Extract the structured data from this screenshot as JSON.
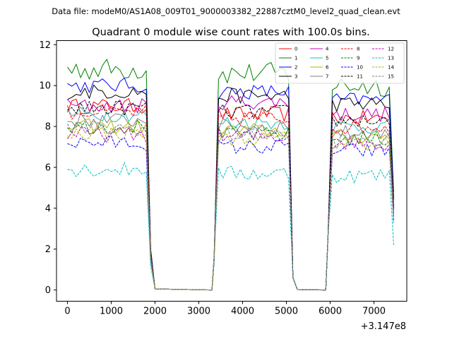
{
  "header": "Data file: modeM0/AS1A08_009T01_9000003382_22887cztM0_level2_quad_clean.evt",
  "chart_data": {
    "type": "line",
    "title": "Quadrant 0 module wise count rates with 100.0s bins.",
    "xlabel": "",
    "ylabel": "",
    "x_offset_label": "+3.147e8",
    "xlim": [
      -250,
      7750
    ],
    "ylim": [
      -0.55,
      12.2
    ],
    "xticks": [
      0,
      1000,
      2000,
      3000,
      4000,
      5000,
      6000,
      7000
    ],
    "yticks": [
      0,
      2,
      4,
      6,
      8,
      10,
      12
    ],
    "legend_position": "top-right",
    "segments": [
      {
        "x_start": 0,
        "x_end": 1800,
        "step": 100
      },
      {
        "x_start": 3450,
        "x_end": 5050,
        "step": 100
      },
      {
        "x_start": 6050,
        "x_end": 7350,
        "step": 100
      }
    ],
    "transitions": {
      "drops": [
        [
          1900,
          1.8
        ],
        [
          2000,
          0.05
        ],
        [
          3300,
          0.0
        ]
      ],
      "rises": [
        [
          3350,
          1.5
        ]
      ],
      "drop2": [
        [
          5150,
          0.6
        ],
        [
          5250,
          0.02
        ],
        [
          5900,
          0.0
        ]
      ],
      "rise2": [
        [
          5950,
          2.6
        ]
      ],
      "end": [
        [
          7450,
          3.5
        ]
      ]
    },
    "series": [
      {
        "name": "0",
        "color": "#ff0000",
        "dash": "solid",
        "level1": 9.0,
        "level2": 8.6,
        "level3": 8.4,
        "end": 4.0
      },
      {
        "name": "1",
        "color": "#008000",
        "dash": "solid",
        "level1": 10.8,
        "level2": 10.6,
        "level3": 10.0,
        "end": 4.8
      },
      {
        "name": "2",
        "color": "#0000ff",
        "dash": "solid",
        "level1": 10.0,
        "level2": 9.7,
        "level3": 9.3,
        "end": 4.5
      },
      {
        "name": "3",
        "color": "#000000",
        "dash": "solid",
        "level1": 9.7,
        "level2": 9.5,
        "level3": 9.1,
        "end": 4.4
      },
      {
        "name": "4",
        "color": "#c000c0",
        "dash": "solid",
        "level1": 9.0,
        "level2": 9.2,
        "level3": 8.6,
        "end": 4.2
      },
      {
        "name": "5",
        "color": "#1fbfbf",
        "dash": "solid",
        "level1": 8.6,
        "level2": 8.2,
        "level3": 8.0,
        "end": 3.9
      },
      {
        "name": "6",
        "color": "#b5b500",
        "dash": "solid",
        "level1": 8.0,
        "level2": 7.8,
        "level3": 7.5,
        "end": 3.7
      },
      {
        "name": "7",
        "color": "#808080",
        "dash": "solid",
        "level1": 8.3,
        "level2": 8.0,
        "level3": 7.7,
        "end": 3.8
      },
      {
        "name": "8",
        "color": "#ff0000",
        "dash": "dashed",
        "level1": 8.7,
        "level2": 8.4,
        "level3": 8.0,
        "end": 3.9
      },
      {
        "name": "9",
        "color": "#008000",
        "dash": "dashed",
        "level1": 8.0,
        "level2": 7.6,
        "level3": 7.4,
        "end": 3.6
      },
      {
        "name": "10",
        "color": "#0000ff",
        "dash": "dashed",
        "level1": 7.2,
        "level2": 7.0,
        "level3": 6.8,
        "end": 3.3
      },
      {
        "name": "11",
        "color": "#000000",
        "dash": "dashed",
        "level1": 8.9,
        "level2": 8.7,
        "level3": 8.3,
        "end": 4.0
      },
      {
        "name": "12",
        "color": "#c000c0",
        "dash": "dashed",
        "level1": 7.6,
        "level2": 7.5,
        "level3": 7.2,
        "end": 3.5
      },
      {
        "name": "13",
        "color": "#00bfbf",
        "dash": "dashed",
        "level1": 5.9,
        "level2": 5.7,
        "level3": 5.6,
        "end": 2.2
      },
      {
        "name": "14",
        "color": "#b5b500",
        "dash": "dashed",
        "level1": 7.7,
        "level2": 7.4,
        "level3": 7.2,
        "end": 3.5
      },
      {
        "name": "15",
        "color": "#808080",
        "dash": "dashed",
        "level1": 7.9,
        "level2": 7.6,
        "level3": 7.3,
        "end": 3.6
      }
    ]
  }
}
